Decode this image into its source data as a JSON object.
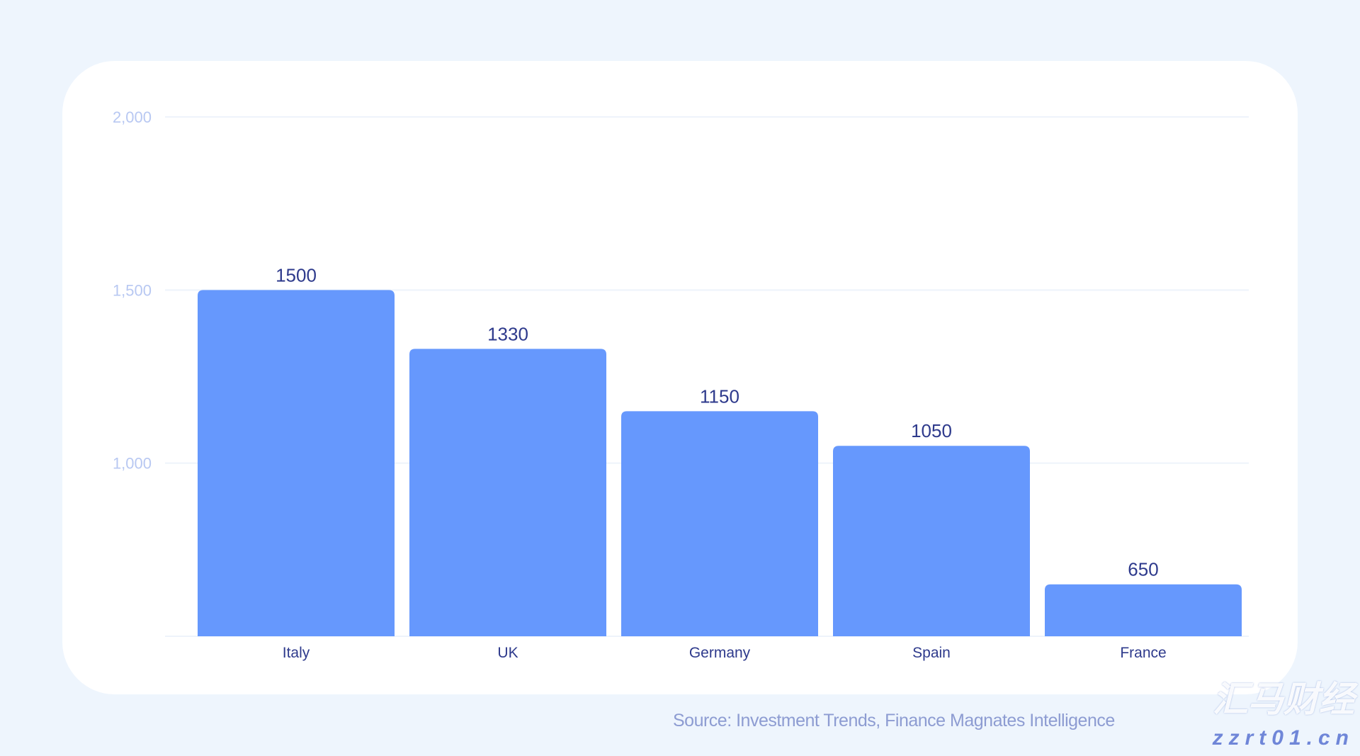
{
  "chart_data": {
    "type": "bar",
    "categories": [
      "Italy",
      "UK",
      "Germany",
      "Spain",
      "France"
    ],
    "values": [
      1500,
      1330,
      1150,
      1050,
      650
    ],
    "data_labels": [
      "1500",
      "1330",
      "1150",
      "1050",
      "650"
    ],
    "ylim": [
      500,
      2000
    ],
    "yticks": [
      2000,
      1500,
      1000
    ],
    "ytick_labels": [
      "2,000",
      "1,500",
      "1,000"
    ],
    "grid": true,
    "title": "",
    "xlabel": "",
    "ylabel": "",
    "colors": {
      "bar": "#6698fd",
      "value_label": "#2e3a8c",
      "tick_label": "#b8c8f2",
      "grid": "#eef3fb"
    }
  },
  "source": "Source: Investment Trends, Finance Magnates Intelligence",
  "watermark": {
    "logo_text": "汇马财经",
    "url": "zzrt01.cn"
  }
}
